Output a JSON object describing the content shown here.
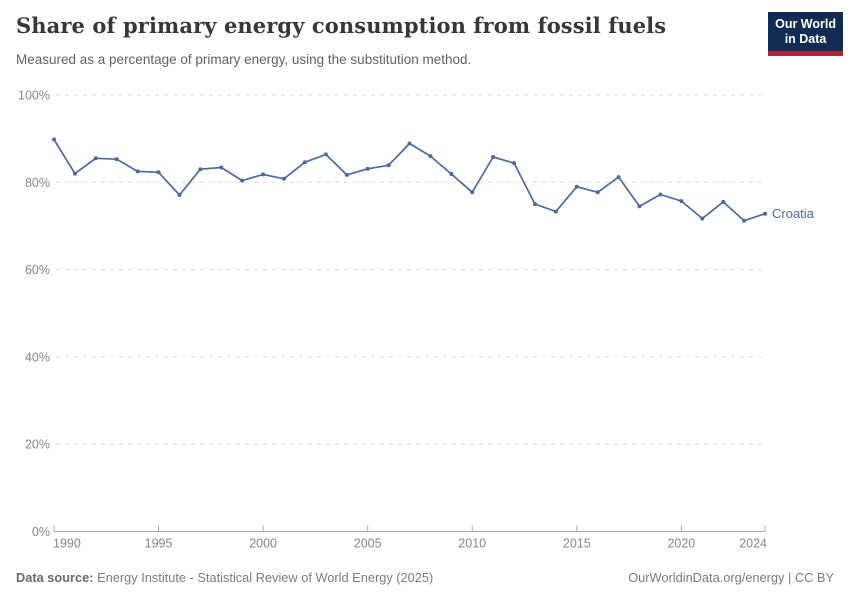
{
  "header": {
    "title": "Share of primary energy consumption from fossil fuels",
    "subtitle": "Measured as a percentage of primary energy, using the substitution method.",
    "logo_line1": "Our World",
    "logo_line2": "in Data",
    "logo_bg_color": "#122b52",
    "logo_accent_color": "#aa283c"
  },
  "chart_data": {
    "type": "line",
    "title": "Share of primary energy consumption from fossil fuels",
    "entity_label": "Croatia",
    "x": [
      1990,
      1991,
      1992,
      1993,
      1994,
      1995,
      1996,
      1997,
      1998,
      1999,
      2000,
      2001,
      2002,
      2003,
      2004,
      2005,
      2006,
      2007,
      2008,
      2009,
      2010,
      2011,
      2012,
      2013,
      2014,
      2015,
      2016,
      2017,
      2018,
      2019,
      2020,
      2021,
      2022,
      2023,
      2024
    ],
    "series": [
      {
        "name": "Croatia",
        "color": "#4c6a9b",
        "values": [
          89.8,
          82.0,
          85.5,
          85.3,
          82.5,
          82.3,
          77.1,
          83.0,
          83.4,
          80.4,
          81.8,
          80.8,
          84.6,
          86.4,
          81.7,
          83.1,
          83.9,
          88.9,
          86.0,
          81.9,
          77.7,
          85.8,
          84.4,
          75.0,
          73.3,
          79.0,
          77.7,
          81.2,
          74.5,
          77.2,
          75.7,
          71.7,
          75.5,
          71.2,
          72.8
        ]
      }
    ],
    "xlabel": "",
    "ylabel": "",
    "ylim": [
      0,
      100
    ],
    "yticks": [
      0,
      20,
      40,
      60,
      80,
      100
    ],
    "ytick_labels": [
      "0%",
      "20%",
      "40%",
      "60%",
      "80%",
      "100%"
    ],
    "xticks": [
      1990,
      1995,
      2000,
      2005,
      2010,
      2015,
      2020,
      2024
    ],
    "xtick_labels": [
      "1990",
      "1995",
      "2000",
      "2005",
      "2010",
      "2015",
      "2020",
      "2024"
    ],
    "grid": "horizontal-dashed",
    "grid_color": "#dcdcdc",
    "axis_color": "#a9a9a9",
    "tick_label_color": "#868686",
    "legend_position": "end-of-line"
  },
  "footer": {
    "source_label": "Data source:",
    "source_text": "Energy Institute - Statistical Review of World Energy (2025)",
    "link_text": "OurWorldinData.org/energy",
    "separator": " | ",
    "license_text": "CC BY"
  }
}
